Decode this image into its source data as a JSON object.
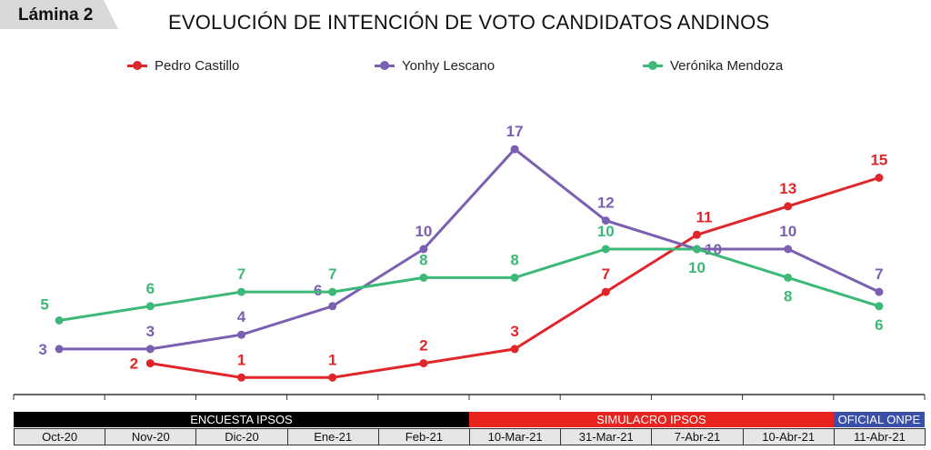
{
  "header": {
    "lamina": "Lámina 2"
  },
  "chart_data": {
    "type": "line",
    "title": "EVOLUCIÓN DE INTENCIÓN DE VOTO CANDIDATOS ANDINOS",
    "categories": [
      "Oct-20",
      "Nov-20",
      "Dic-20",
      "Ene-21",
      "Feb-21",
      "10-Mar-21",
      "31-Mar-21",
      "7-Abr-21",
      "10-Abr-21",
      "11-Abr-21"
    ],
    "groups": [
      {
        "label": "ENCUESTA IPSOS",
        "from": 0,
        "to": 4,
        "color": "#000000"
      },
      {
        "label": "SIMULACRO IPSOS",
        "from": 5,
        "to": 8,
        "color": "#e8231f"
      },
      {
        "label": "OFICIAL ONPE",
        "from": 9,
        "to": 9,
        "color": "#3a4fa8"
      }
    ],
    "ylim": [
      0,
      20
    ],
    "legend_placement": "top",
    "series": [
      {
        "name": "Pedro Castillo",
        "color": "#e0262a",
        "values": [
          null,
          2,
          1,
          1,
          2,
          3,
          7,
          11,
          13,
          15
        ],
        "label_pos": [
          "",
          "left",
          "above",
          "above",
          "above",
          "above",
          "above",
          "above-right",
          "above",
          "above"
        ]
      },
      {
        "name": "Yonhy Lescano",
        "color": "#7b5fb0",
        "values": [
          3,
          3,
          4,
          6,
          10,
          17,
          12,
          10,
          10,
          7
        ],
        "label_pos": [
          "left",
          "above",
          "above",
          "above-left",
          "above",
          "above",
          "above",
          "right",
          "above",
          "above"
        ]
      },
      {
        "name": "Verónika Mendoza",
        "color": "#3cb878",
        "values": [
          5,
          6,
          7,
          7,
          8,
          8,
          10,
          10,
          8,
          6
        ],
        "label_pos": [
          "above-left",
          "above",
          "above",
          "above",
          "above",
          "above",
          "above",
          "below",
          "below",
          "below"
        ]
      }
    ]
  }
}
